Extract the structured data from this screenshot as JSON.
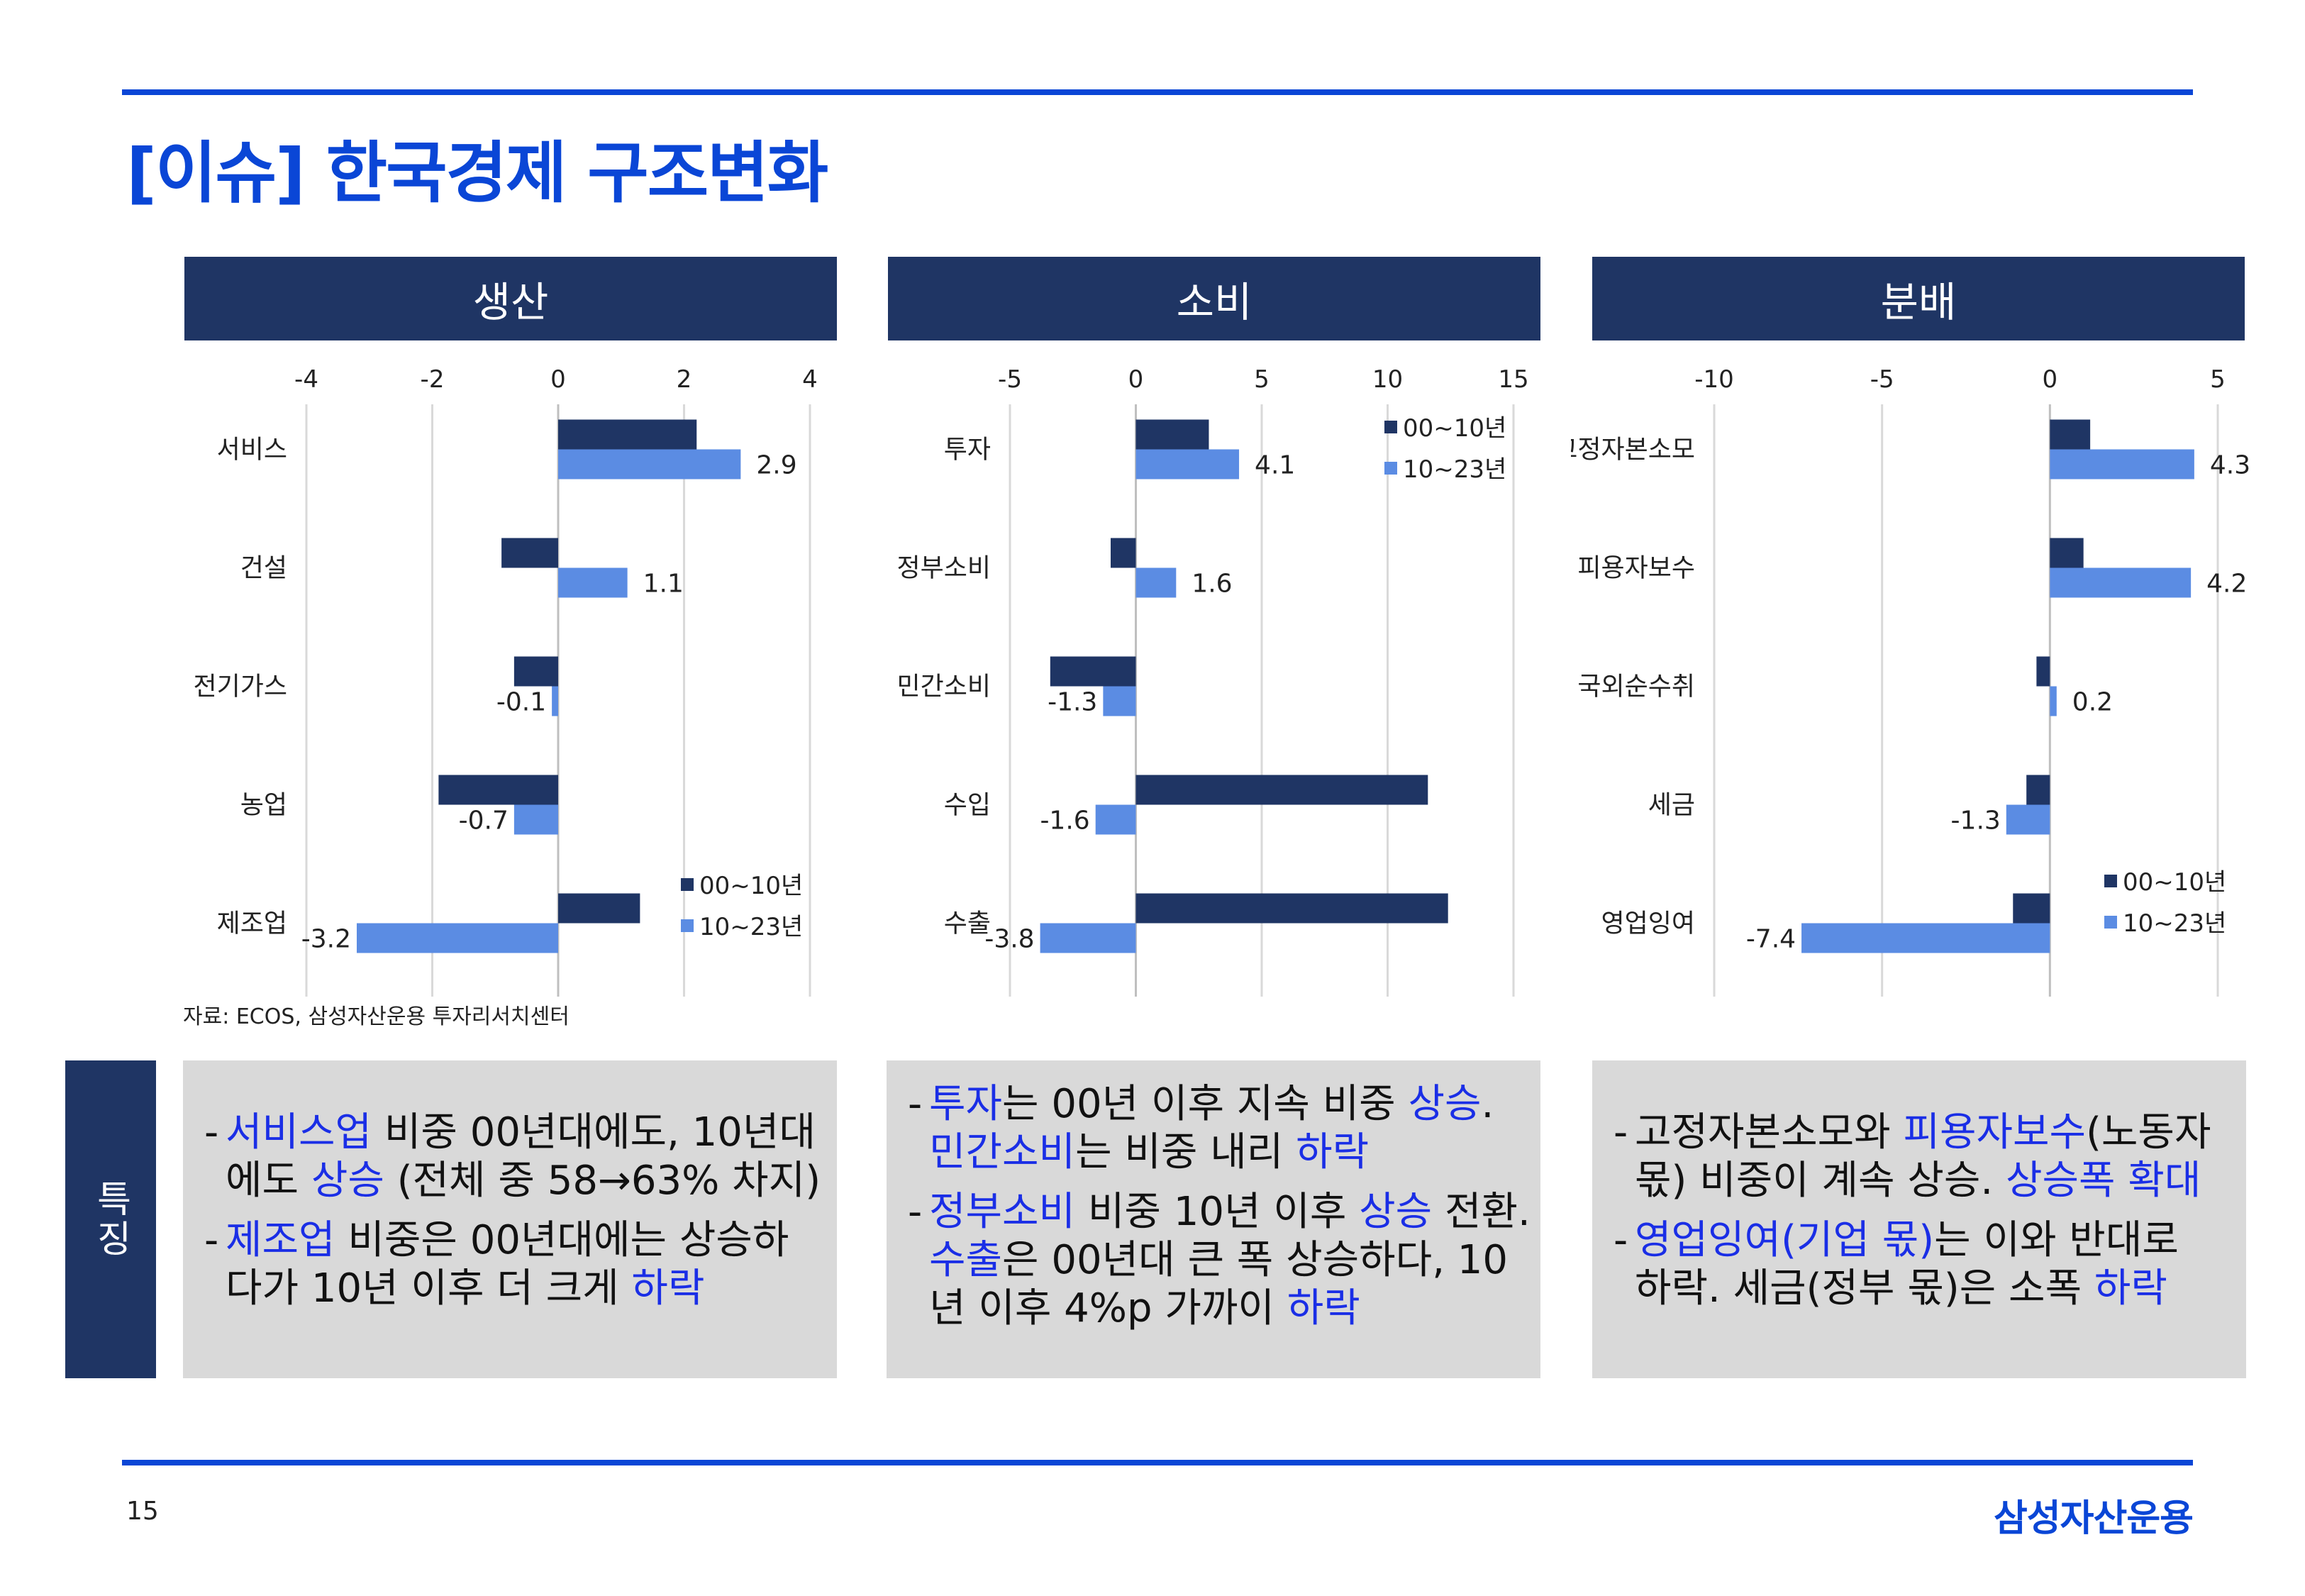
{
  "title": "[이슈] 한국경제 구조변화",
  "source": "자료: ECOS, 삼성자산운용 투자리서치센터",
  "feature_label": "특징",
  "page_number": "15",
  "brand": "삼성자산운용",
  "colors": {
    "accent": "#0a46d6",
    "navy": "#1f3564",
    "series_2000s": "#1f3564",
    "series_2010s": "#5b8ce3",
    "highlight": "#1a2ee6"
  },
  "panels": [
    {
      "heading": "생산",
      "features": [
        [
          {
            "t": "서비스업",
            "hl": true
          },
          {
            "t": " 비중 00년대에도, 10년대"
          }
        ],
        [
          {
            "t": "에도 "
          },
          {
            "t": "상승",
            "hl": true
          },
          {
            "t": " (전체 중 58→63% 차지)"
          }
        ],
        [
          {
            "t": "제조업",
            "hl": true
          },
          {
            "t": " 비중은 00년대에는 상승하"
          }
        ],
        [
          {
            "t": "다가 10년 이후 더 크게 "
          },
          {
            "t": "하락",
            "hl": true
          }
        ]
      ]
    },
    {
      "heading": "소비",
      "features": [
        [
          {
            "t": "투자",
            "hl": true
          },
          {
            "t": "는 00년 이후 지속 비중 "
          },
          {
            "t": "상승",
            "hl": true
          },
          {
            "t": "."
          }
        ],
        [
          {
            "t": "민간소비",
            "hl": true
          },
          {
            "t": "는 비중 내리 "
          },
          {
            "t": "하락",
            "hl": true
          }
        ],
        [
          {
            "t": "정부소비",
            "hl": true
          },
          {
            "t": " 비중 10년 이후 "
          },
          {
            "t": "상승",
            "hl": true
          },
          {
            "t": " 전환."
          }
        ],
        [
          {
            "t": "수출",
            "hl": true
          },
          {
            "t": "은 00년대 큰 폭 상승하다, 10"
          }
        ],
        [
          {
            "t": "년 이후 4%p 가까이 "
          },
          {
            "t": "하락",
            "hl": true
          }
        ]
      ]
    },
    {
      "heading": "분배",
      "features": [
        [
          {
            "t": "고정자본소모와 "
          },
          {
            "t": "피용자보수",
            "hl": true
          },
          {
            "t": "(노동자"
          }
        ],
        [
          {
            "t": "몫) 비중이 계속 상승. "
          },
          {
            "t": "상승폭 확대",
            "hl": true
          }
        ],
        [
          {
            "t": "영업잉여(기업 몫)",
            "hl": true
          },
          {
            "t": "는 이와 반대로"
          }
        ],
        [
          {
            "t": "하락. 세금(정부 몫)은 소폭 "
          },
          {
            "t": "하락",
            "hl": true
          }
        ]
      ]
    }
  ],
  "chart_data": [
    {
      "type": "bar",
      "orientation": "horizontal",
      "title": "생산",
      "categories": [
        "서비스",
        "건설",
        "전기가스",
        "농업",
        "제조업"
      ],
      "xlim": [
        -4,
        4
      ],
      "ticks": [
        -4,
        -2,
        0,
        2,
        4
      ],
      "grid": true,
      "legend": "bottom-right",
      "series": [
        {
          "name": "00~10년",
          "values": [
            2.2,
            -0.9,
            -0.7,
            -1.9,
            1.3
          ]
        },
        {
          "name": "10~23년",
          "values": [
            2.9,
            1.1,
            -0.1,
            -0.7,
            -3.2
          ],
          "labels": [
            "2.9",
            "1.1",
            "-0.1",
            "-0.7",
            "-3.2"
          ]
        }
      ]
    },
    {
      "type": "bar",
      "orientation": "horizontal",
      "title": "소비",
      "categories": [
        "투자",
        "정부소비",
        "민간소비",
        "수입",
        "수출"
      ],
      "xlim": [
        -5,
        15
      ],
      "ticks": [
        -5,
        0,
        5,
        10,
        15
      ],
      "grid": true,
      "legend": "top-right",
      "series": [
        {
          "name": "00~10년",
          "values": [
            2.9,
            -1.0,
            -3.4,
            11.6,
            12.4
          ]
        },
        {
          "name": "10~23년",
          "values": [
            4.1,
            1.6,
            -1.3,
            -1.6,
            -3.8
          ],
          "labels": [
            "4.1",
            "1.6",
            "-1.3",
            "-1.6",
            "-3.8"
          ]
        }
      ]
    },
    {
      "type": "bar",
      "orientation": "horizontal",
      "title": "분배",
      "categories": [
        "고정자본소모",
        "피용자보수",
        "국외순수취",
        "세금",
        "영업잉여"
      ],
      "xlim": [
        -10,
        5
      ],
      "ticks": [
        -10,
        -5,
        0,
        5
      ],
      "grid": true,
      "legend": "bottom-right",
      "series": [
        {
          "name": "00~10년",
          "values": [
            1.2,
            1.0,
            -0.4,
            -0.7,
            -1.1
          ]
        },
        {
          "name": "10~23년",
          "values": [
            4.3,
            4.2,
            0.2,
            -1.3,
            -7.4
          ],
          "labels": [
            "4.3",
            "4.2",
            "0.2",
            "-1.3",
            "-7.4"
          ]
        }
      ]
    }
  ]
}
